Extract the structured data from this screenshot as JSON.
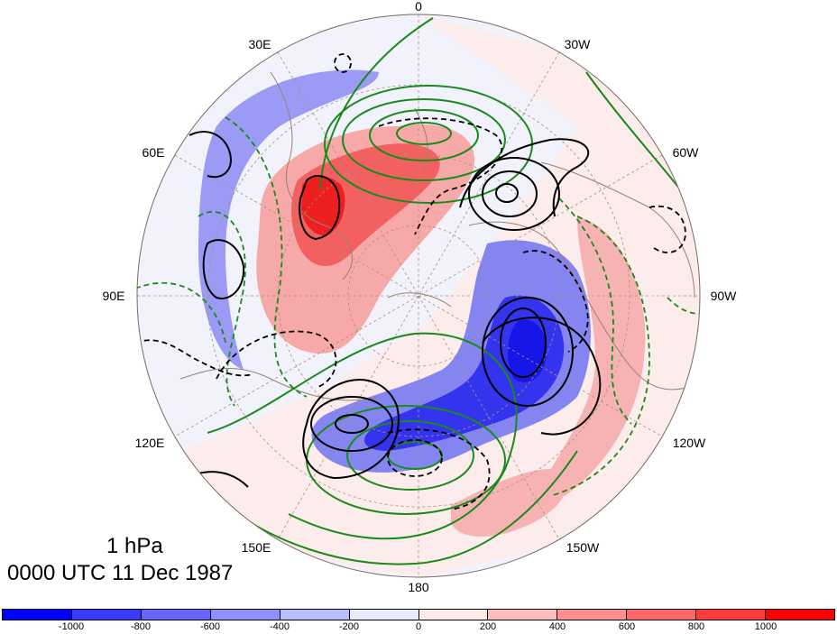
{
  "map": {
    "projection": "north-polar-stereographic",
    "longitude_labels": [
      "0",
      "30W",
      "60W",
      "90W",
      "120W",
      "150W",
      "180",
      "150E",
      "120E",
      "90E",
      "60E",
      "30E"
    ],
    "fill_colors": {
      "strong_negative": "#2525f0",
      "negative": "#8a8af5",
      "weak_negative": "#ececfb",
      "weak_positive": "#fdecec",
      "positive": "#f59a9a",
      "strong_positive": "#f02525"
    },
    "line_colors": {
      "black_contours": "#000000",
      "green_contours": "#1a8a1a",
      "coastlines": "#9a8070",
      "grid": "#9a8070"
    }
  },
  "caption": {
    "level": "1 hPa",
    "time": "0000 UTC 11 Dec 1987"
  },
  "colorbar": {
    "colors": [
      "#0000ff",
      "#3a3aff",
      "#6666ff",
      "#9090ff",
      "#bcbcff",
      "#eaeaff",
      "#ffeaea",
      "#ffbcbc",
      "#ff9090",
      "#ff6666",
      "#ff3a3a",
      "#ff0000"
    ],
    "tick_labels": [
      "-1000",
      "-800",
      "-600",
      "-400",
      "-200",
      "0",
      "200",
      "400",
      "600",
      "800",
      "1000"
    ]
  }
}
